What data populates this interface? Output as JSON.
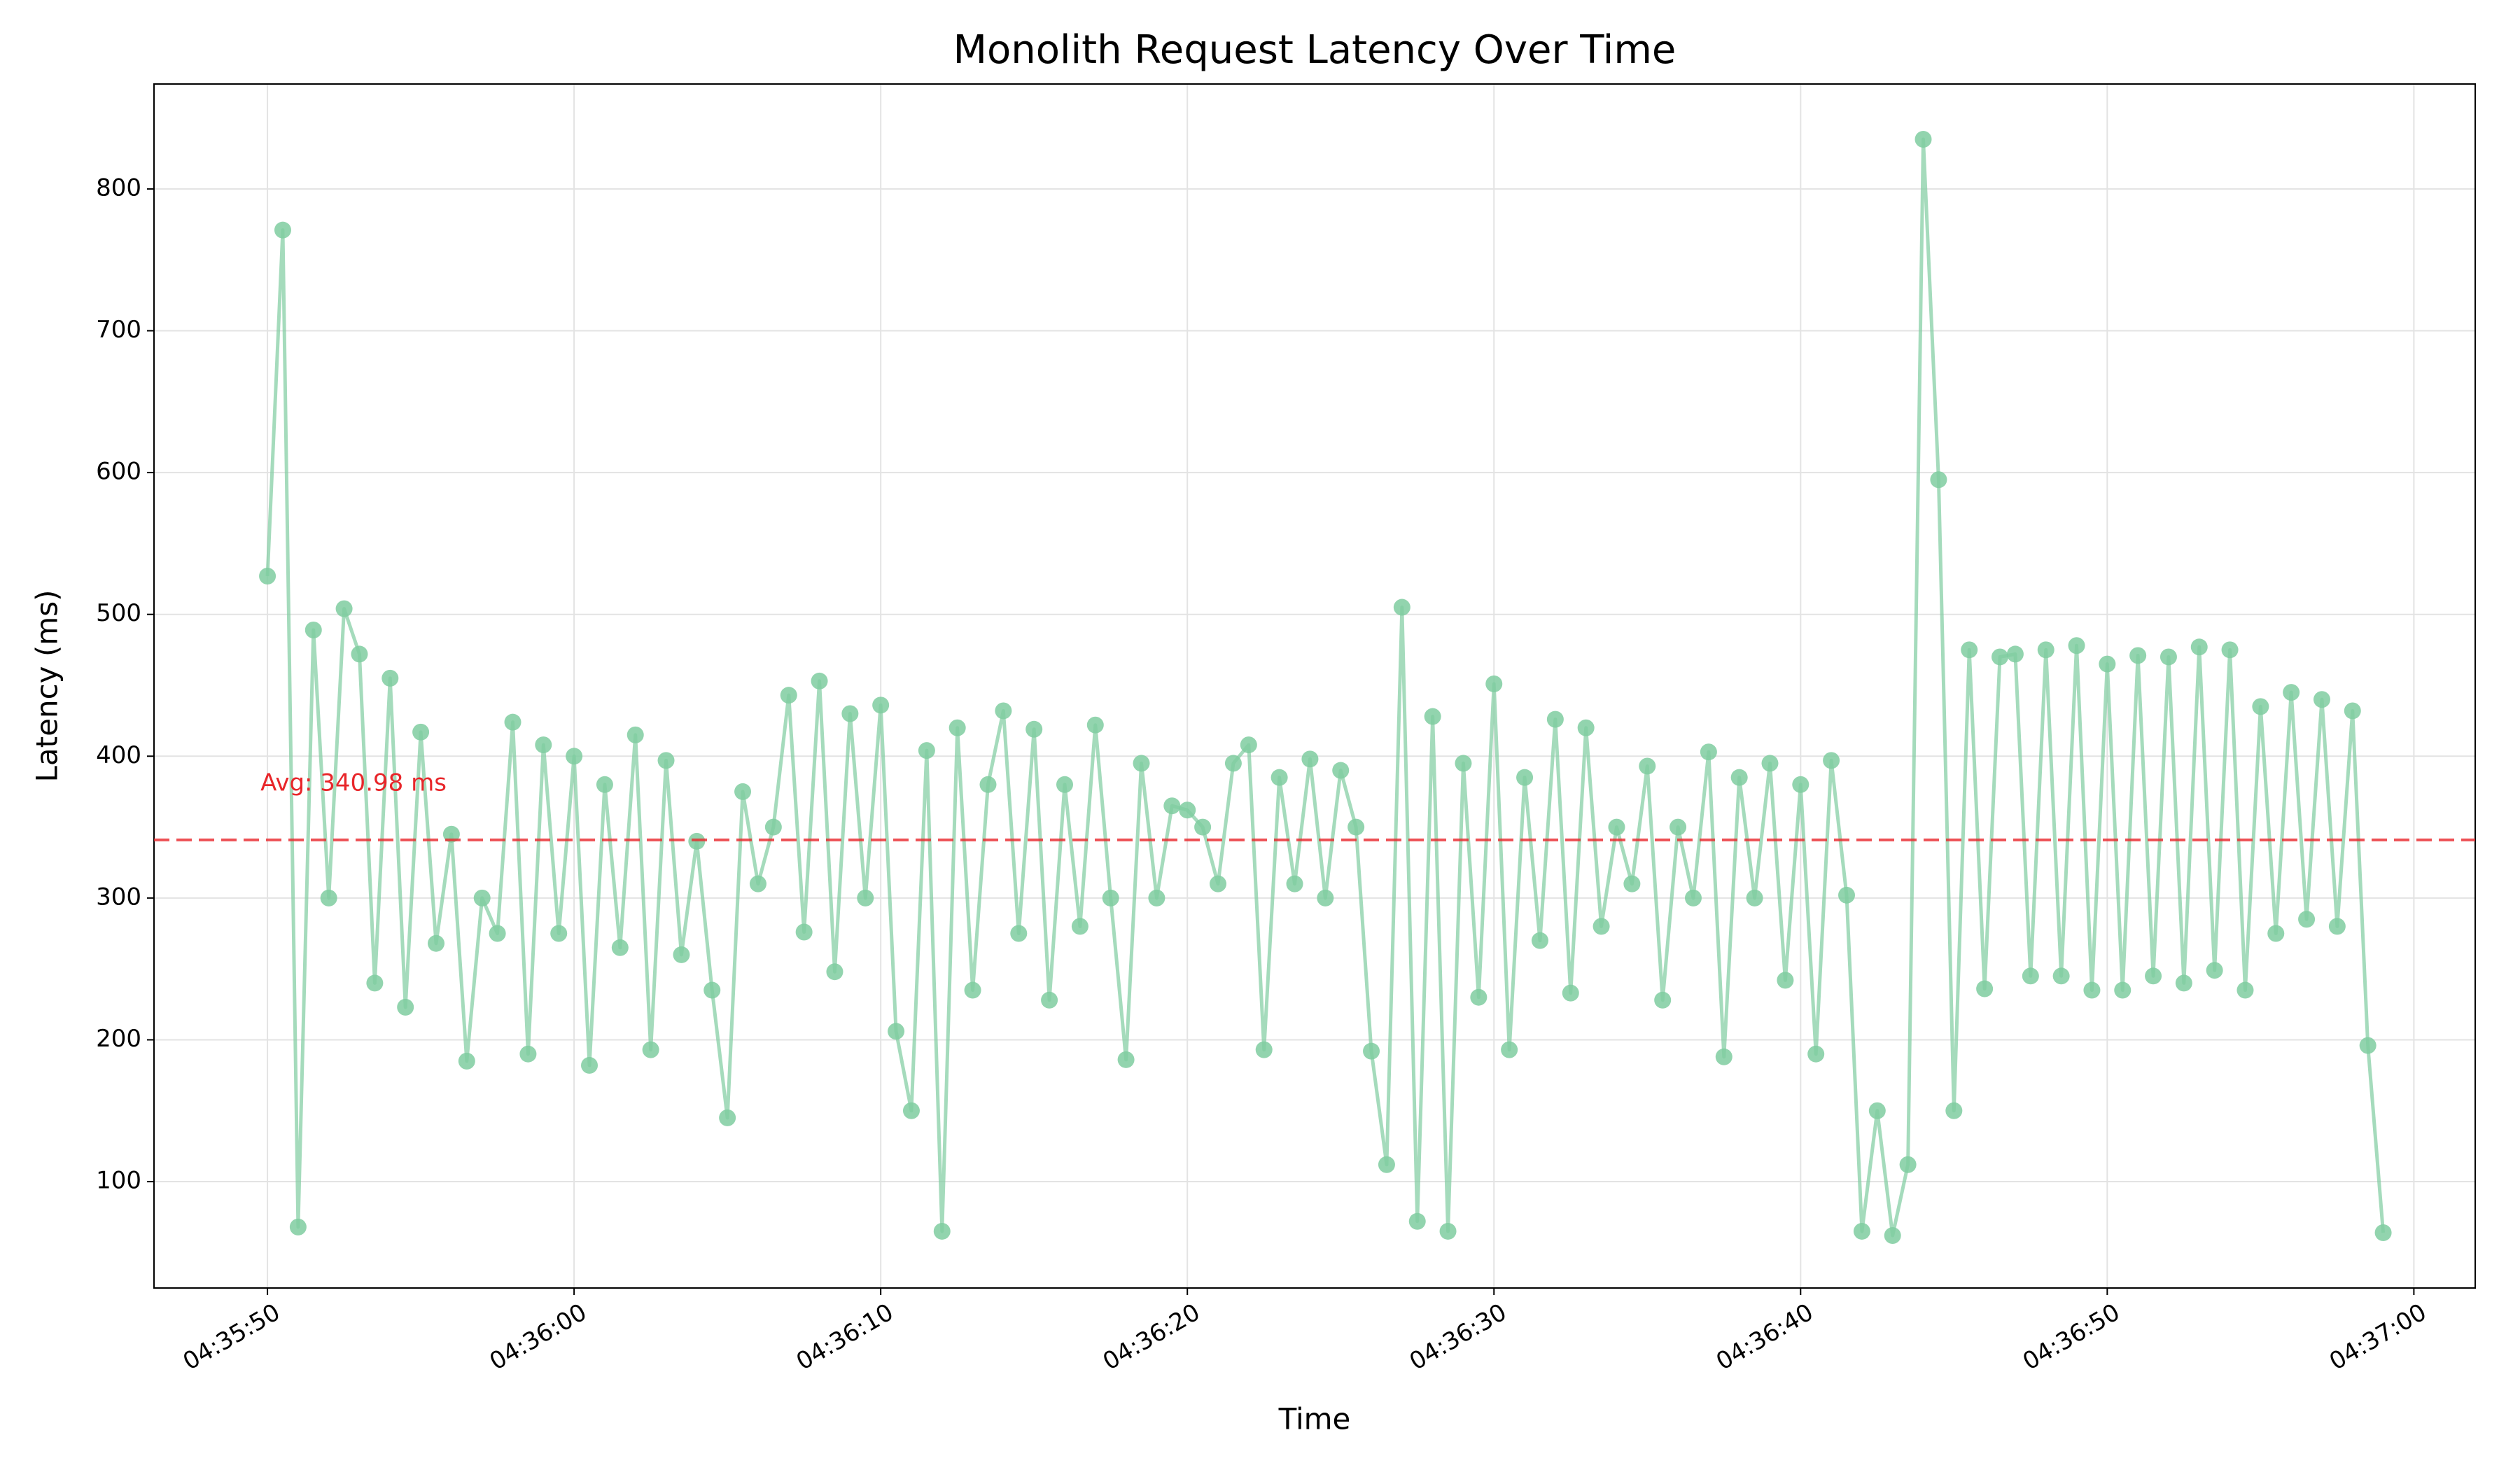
{
  "chart_data": {
    "type": "line",
    "title": "Monolith Request Latency Over Time",
    "x_label": "Time",
    "y_label": "Latency (ms)",
    "color": "#7fcca0",
    "grid": true,
    "xlim": [
      "04:35:46.3",
      "04:37:02.0"
    ],
    "xticks": [
      "04:35:50",
      "04:36:00",
      "04:36:10",
      "04:36:20",
      "04:36:30",
      "04:36:40",
      "04:36:50",
      "04:37:00"
    ],
    "ylim": [
      25,
      874
    ],
    "yticks": [
      100,
      200,
      300,
      400,
      500,
      600,
      700,
      800
    ],
    "avg_line": {
      "value": 340.98,
      "label": "Avg: 340.98 ms",
      "color": "#e8262a"
    },
    "x": [
      "04:35:50.0",
      "04:35:50.5",
      "04:35:51.0",
      "04:35:51.5",
      "04:35:52.0",
      "04:35:52.5",
      "04:35:53.0",
      "04:35:53.5",
      "04:35:54.0",
      "04:35:54.5",
      "04:35:55.0",
      "04:35:55.5",
      "04:35:56.0",
      "04:35:56.5",
      "04:35:57.0",
      "04:35:57.5",
      "04:35:58.0",
      "04:35:58.5",
      "04:35:59.0",
      "04:35:59.5",
      "04:36:00.0",
      "04:36:00.5",
      "04:36:01.0",
      "04:36:01.5",
      "04:36:02.0",
      "04:36:02.5",
      "04:36:03.0",
      "04:36:03.5",
      "04:36:04.0",
      "04:36:04.5",
      "04:36:05.0",
      "04:36:05.5",
      "04:36:06.0",
      "04:36:06.5",
      "04:36:07.0",
      "04:36:07.5",
      "04:36:08.0",
      "04:36:08.5",
      "04:36:09.0",
      "04:36:09.5",
      "04:36:10.0",
      "04:36:10.5",
      "04:36:11.0",
      "04:36:11.5",
      "04:36:12.0",
      "04:36:12.5",
      "04:36:13.0",
      "04:36:13.5",
      "04:36:14.0",
      "04:36:14.5",
      "04:36:15.0",
      "04:36:15.5",
      "04:36:16.0",
      "04:36:16.5",
      "04:36:17.0",
      "04:36:17.5",
      "04:36:18.0",
      "04:36:18.5",
      "04:36:19.0",
      "04:36:19.5",
      "04:36:20.0",
      "04:36:20.5",
      "04:36:21.0",
      "04:36:21.5",
      "04:36:22.0",
      "04:36:22.5",
      "04:36:23.0",
      "04:36:23.5",
      "04:36:24.0",
      "04:36:24.5",
      "04:36:25.0",
      "04:36:25.5",
      "04:36:26.0",
      "04:36:26.5",
      "04:36:27.0",
      "04:36:27.5",
      "04:36:28.0",
      "04:36:28.5",
      "04:36:29.0",
      "04:36:29.5",
      "04:36:30.0",
      "04:36:30.5",
      "04:36:31.0",
      "04:36:31.5",
      "04:36:32.0",
      "04:36:32.5",
      "04:36:33.0",
      "04:36:33.5",
      "04:36:34.0",
      "04:36:34.5",
      "04:36:35.0",
      "04:36:35.5",
      "04:36:36.0",
      "04:36:36.5",
      "04:36:37.0",
      "04:36:37.5",
      "04:36:38.0",
      "04:36:38.5",
      "04:36:39.0",
      "04:36:39.5",
      "04:36:40.0",
      "04:36:40.5",
      "04:36:41.0",
      "04:36:41.5",
      "04:36:42.0",
      "04:36:42.5",
      "04:36:43.0",
      "04:36:43.5",
      "04:36:44.0",
      "04:36:44.5",
      "04:36:45.0",
      "04:36:45.5",
      "04:36:46.0",
      "04:36:46.5",
      "04:36:47.0",
      "04:36:47.5",
      "04:36:48.0",
      "04:36:48.5",
      "04:36:49.0",
      "04:36:49.5",
      "04:36:50.0",
      "04:36:50.5",
      "04:36:51.0",
      "04:36:51.5",
      "04:36:52.0",
      "04:36:52.5",
      "04:36:53.0",
      "04:36:53.5",
      "04:36:54.0",
      "04:36:54.5",
      "04:36:55.0",
      "04:36:55.5",
      "04:36:56.0",
      "04:36:56.5",
      "04:36:57.0",
      "04:36:57.5",
      "04:36:58.0",
      "04:36:58.5",
      "04:36:59.0"
    ],
    "values": [
      527,
      771,
      68,
      489,
      300,
      504,
      472,
      240,
      455,
      223,
      417,
      268,
      345,
      185,
      300,
      275,
      424,
      190,
      408,
      275,
      400,
      182,
      380,
      265,
      415,
      193,
      397,
      260,
      340,
      235,
      145,
      375,
      310,
      350,
      443,
      276,
      453,
      248,
      430,
      300,
      436,
      206,
      150,
      404,
      65,
      420,
      235,
      380,
      432,
      275,
      419,
      228,
      380,
      280,
      422,
      300,
      186,
      395,
      300,
      365,
      362,
      350,
      310,
      395,
      408,
      193,
      385,
      310,
      398,
      300,
      390,
      350,
      192,
      112,
      505,
      72,
      428,
      65,
      395,
      230,
      451,
      193,
      385,
      270,
      426,
      233,
      420,
      280,
      350,
      310,
      393,
      228,
      350,
      300,
      403,
      188,
      385,
      300,
      395,
      242,
      380,
      190,
      397,
      302,
      65,
      150,
      62,
      112,
      835,
      595,
      150,
      475,
      236,
      470,
      472,
      245,
      475,
      245,
      478,
      235,
      465,
      235,
      471,
      245,
      470,
      240,
      477,
      249,
      475,
      235,
      435,
      275,
      445,
      285,
      440,
      280,
      432,
      196,
      64
    ]
  }
}
